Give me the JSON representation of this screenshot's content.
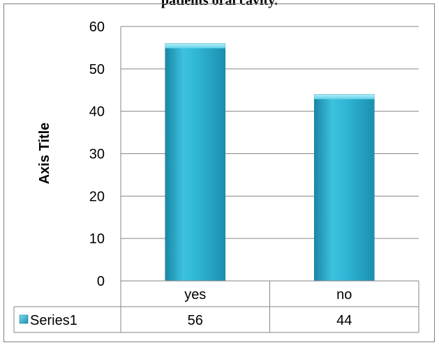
{
  "chart_data": {
    "type": "bar",
    "title": "patients oral cavity.",
    "categories": [
      "yes",
      "no"
    ],
    "series": [
      {
        "name": "Series1",
        "values": [
          56,
          44
        ]
      }
    ],
    "ylabel": "Axis Title",
    "xlabel": "",
    "ylim": [
      0,
      60
    ],
    "yticks": [
      0,
      10,
      20,
      30,
      40,
      50,
      60
    ],
    "grid": true,
    "data_table": true,
    "colors": {
      "bar_light": "#8fe3f2",
      "bar_mid": "#2fb4d3",
      "bar_dark": "#1a86a6",
      "grid": "#868686",
      "axis": "#868686"
    }
  }
}
